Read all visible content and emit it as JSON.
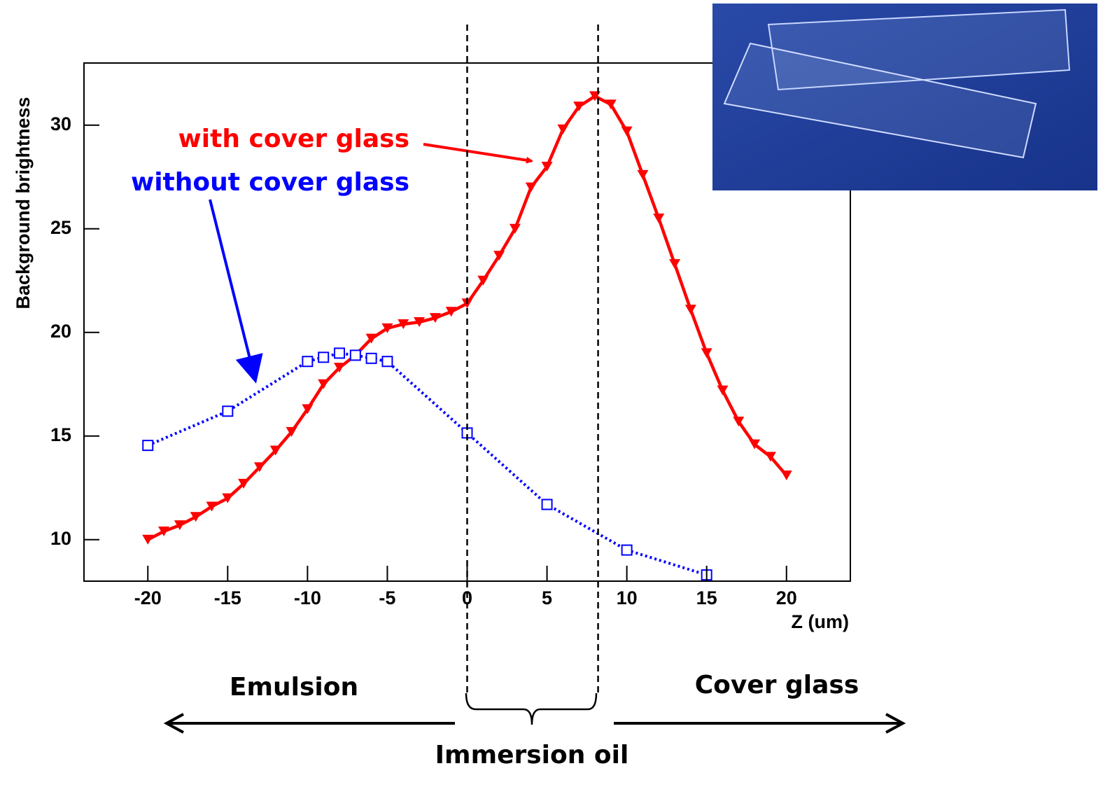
{
  "chart_data": {
    "type": "line",
    "xlabel": "Z (um)",
    "ylabel": "Background brightness",
    "xlim": [
      -24,
      24
    ],
    "ylim": [
      8,
      33
    ],
    "xticks": [
      -20,
      -15,
      -10,
      -5,
      0,
      5,
      10,
      15,
      20
    ],
    "yticks": [
      10,
      15,
      20,
      25,
      30
    ],
    "vlines": [
      0,
      8.2
    ],
    "series": [
      {
        "name": "with cover glass",
        "color": "#ff0000",
        "marker": "triangle-down",
        "dash": false,
        "x": [
          -20,
          -19,
          -18,
          -17,
          -16,
          -15,
          -14,
          -13,
          -12,
          -11,
          -10,
          -9,
          -8,
          -7,
          -6,
          -5,
          -4,
          -3,
          -2,
          -1,
          0,
          1,
          2,
          3,
          4,
          5,
          6,
          7,
          8,
          9,
          10,
          11,
          12,
          13,
          14,
          15,
          16,
          17,
          18,
          19,
          20
        ],
        "values": [
          10.0,
          10.4,
          10.7,
          11.1,
          11.6,
          12.0,
          12.7,
          13.5,
          14.3,
          15.2,
          16.3,
          17.5,
          18.3,
          18.9,
          19.7,
          20.2,
          20.4,
          20.5,
          20.7,
          21.0,
          21.4,
          22.5,
          23.7,
          25.0,
          27.0,
          28.0,
          29.8,
          30.9,
          31.4,
          31.0,
          29.7,
          27.6,
          25.5,
          23.3,
          21.1,
          19.0,
          17.2,
          15.7,
          14.6,
          14.0,
          13.1
        ]
      },
      {
        "name": "without cover glass",
        "color": "#0000ff",
        "marker": "square",
        "dash": true,
        "x": [
          -20,
          -15,
          -10,
          -9,
          -8,
          -7,
          -6,
          -5,
          0,
          5,
          10,
          15
        ],
        "values": [
          14.55,
          16.2,
          18.6,
          18.8,
          19.0,
          18.9,
          18.75,
          18.6,
          15.15,
          11.7,
          9.5,
          8.3
        ]
      }
    ],
    "annotations": {
      "left": "Emulsion",
      "right": "Cover glass",
      "middle": "Immersion oil"
    }
  }
}
